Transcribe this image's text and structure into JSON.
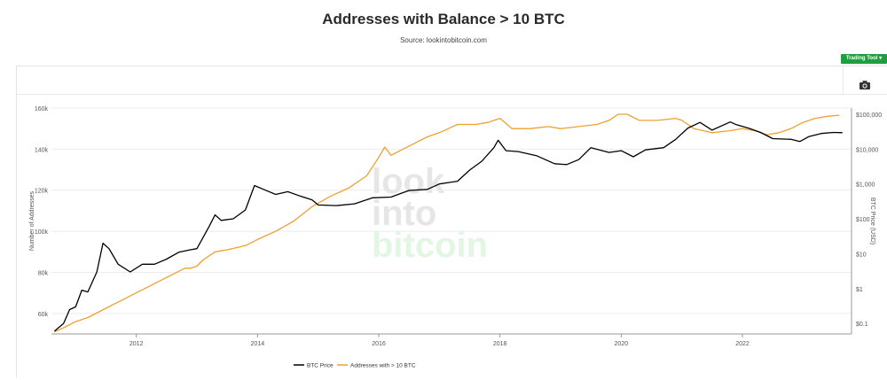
{
  "page": {
    "title": "Addresses with Balance > 10 BTC",
    "subtitle": "Source: lookintobitcoin.com",
    "trading_tool_label": "Trading Tool",
    "trading_tool_arrow": "▾"
  },
  "watermark": [
    "look",
    "into",
    "bitcoin"
  ],
  "colors": {
    "price": "#000000",
    "addresses": "#f0a030",
    "watermark_gray": "#e6e6e6",
    "watermark_green": "#e3f6e3",
    "button": "#1e9e3e"
  },
  "chart_data": {
    "type": "line",
    "x_ticks": [
      "2012",
      "2014",
      "2016",
      "2018",
      "2020",
      "2022"
    ],
    "y_left": {
      "label": "Number of Addresses",
      "ticks": [
        "60k",
        "80k",
        "100k",
        "120k",
        "140k",
        "160k"
      ],
      "range": [
        50000,
        160000
      ]
    },
    "y_right": {
      "label": "BTC Price (USD)",
      "scale": "log",
      "ticks": [
        "$0.1",
        "$1",
        "$10",
        "$100",
        "$1,000",
        "$10,000",
        "$100,000"
      ],
      "range": [
        0.05,
        150000
      ]
    },
    "x_range": [
      2010.6,
      2023.8
    ],
    "legend": [
      "BTC Price",
      "Addresses with > 10 BTC"
    ],
    "series": [
      {
        "name": "Addresses with > 10 BTC",
        "axis": "left",
        "points": [
          [
            2010.65,
            51000
          ],
          [
            2010.8,
            53000
          ],
          [
            2011.0,
            56000
          ],
          [
            2011.2,
            58000
          ],
          [
            2011.4,
            61000
          ],
          [
            2011.6,
            64000
          ],
          [
            2011.8,
            67000
          ],
          [
            2012.0,
            70000
          ],
          [
            2012.2,
            73000
          ],
          [
            2012.4,
            76000
          ],
          [
            2012.6,
            79000
          ],
          [
            2012.8,
            82000
          ],
          [
            2012.9,
            82000
          ],
          [
            2013.0,
            83000
          ],
          [
            2013.1,
            86000
          ],
          [
            2013.3,
            90000
          ],
          [
            2013.5,
            91000
          ],
          [
            2013.8,
            93000
          ],
          [
            2014.0,
            96000
          ],
          [
            2014.3,
            100000
          ],
          [
            2014.6,
            105000
          ],
          [
            2014.9,
            112000
          ],
          [
            2015.2,
            117000
          ],
          [
            2015.5,
            121000
          ],
          [
            2015.8,
            127000
          ],
          [
            2016.0,
            136000
          ],
          [
            2016.1,
            141000
          ],
          [
            2016.2,
            137000
          ],
          [
            2016.4,
            140000
          ],
          [
            2016.6,
            143000
          ],
          [
            2016.8,
            146000
          ],
          [
            2017.0,
            148000
          ],
          [
            2017.3,
            152000
          ],
          [
            2017.6,
            152000
          ],
          [
            2017.8,
            153000
          ],
          [
            2018.0,
            155000
          ],
          [
            2018.2,
            150000
          ],
          [
            2018.5,
            150000
          ],
          [
            2018.8,
            151000
          ],
          [
            2019.0,
            150000
          ],
          [
            2019.3,
            151000
          ],
          [
            2019.6,
            152000
          ],
          [
            2019.8,
            154000
          ],
          [
            2019.95,
            157000
          ],
          [
            2020.1,
            157000
          ],
          [
            2020.3,
            154000
          ],
          [
            2020.6,
            154000
          ],
          [
            2020.9,
            155000
          ],
          [
            2021.0,
            154000
          ],
          [
            2021.2,
            150000
          ],
          [
            2021.5,
            148000
          ],
          [
            2021.8,
            149000
          ],
          [
            2022.0,
            150000
          ],
          [
            2022.2,
            149000
          ],
          [
            2022.4,
            147000
          ],
          [
            2022.6,
            148000
          ],
          [
            2022.8,
            150000
          ],
          [
            2023.0,
            153000
          ],
          [
            2023.2,
            155000
          ],
          [
            2023.4,
            156000
          ],
          [
            2023.6,
            156500
          ]
        ]
      },
      {
        "name": "BTC Price",
        "axis": "right",
        "points": [
          [
            2010.65,
            0.06
          ],
          [
            2010.8,
            0.1
          ],
          [
            2010.9,
            0.25
          ],
          [
            2011.0,
            0.3
          ],
          [
            2011.1,
            0.9
          ],
          [
            2011.2,
            0.8
          ],
          [
            2011.35,
            3
          ],
          [
            2011.45,
            20
          ],
          [
            2011.55,
            14
          ],
          [
            2011.7,
            5
          ],
          [
            2011.9,
            3
          ],
          [
            2012.1,
            5
          ],
          [
            2012.3,
            5
          ],
          [
            2012.5,
            7
          ],
          [
            2012.7,
            11
          ],
          [
            2012.9,
            13
          ],
          [
            2013.0,
            14
          ],
          [
            2013.2,
            60
          ],
          [
            2013.3,
            130
          ],
          [
            2013.4,
            90
          ],
          [
            2013.6,
            100
          ],
          [
            2013.8,
            180
          ],
          [
            2013.95,
            900
          ],
          [
            2014.1,
            700
          ],
          [
            2014.3,
            500
          ],
          [
            2014.5,
            600
          ],
          [
            2014.7,
            450
          ],
          [
            2014.9,
            350
          ],
          [
            2015.0,
            250
          ],
          [
            2015.3,
            240
          ],
          [
            2015.6,
            270
          ],
          [
            2015.9,
            400
          ],
          [
            2016.2,
            420
          ],
          [
            2016.5,
            650
          ],
          [
            2016.8,
            700
          ],
          [
            2017.0,
            1000
          ],
          [
            2017.3,
            1200
          ],
          [
            2017.5,
            2500
          ],
          [
            2017.7,
            4500
          ],
          [
            2017.9,
            11000
          ],
          [
            2017.97,
            18000
          ],
          [
            2018.1,
            9000
          ],
          [
            2018.3,
            8500
          ],
          [
            2018.6,
            6500
          ],
          [
            2018.9,
            3800
          ],
          [
            2019.1,
            3600
          ],
          [
            2019.3,
            5000
          ],
          [
            2019.5,
            11000
          ],
          [
            2019.8,
            8000
          ],
          [
            2020.0,
            9000
          ],
          [
            2020.2,
            6000
          ],
          [
            2020.4,
            9500
          ],
          [
            2020.7,
            11000
          ],
          [
            2020.9,
            19000
          ],
          [
            2021.1,
            40000
          ],
          [
            2021.3,
            58000
          ],
          [
            2021.5,
            35000
          ],
          [
            2021.8,
            60000
          ],
          [
            2021.9,
            50000
          ],
          [
            2022.1,
            40000
          ],
          [
            2022.3,
            30000
          ],
          [
            2022.5,
            20000
          ],
          [
            2022.8,
            19000
          ],
          [
            2022.95,
            16500
          ],
          [
            2023.1,
            23000
          ],
          [
            2023.3,
            28000
          ],
          [
            2023.5,
            30000
          ],
          [
            2023.65,
            29500
          ]
        ]
      }
    ]
  }
}
